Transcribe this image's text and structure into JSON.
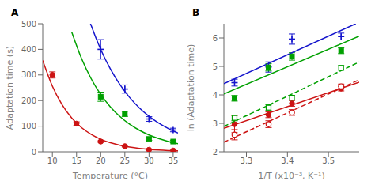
{
  "chart_data": [
    {
      "type": "scatter",
      "title": "A",
      "xlabel": "Temperature (°C)",
      "ylabel": "Adaptation time (s)",
      "xlim": [
        8,
        36
      ],
      "ylim": [
        0,
        500
      ],
      "xticks": [
        10,
        15,
        20,
        25,
        30,
        35
      ],
      "yticks": [
        0,
        100,
        200,
        300,
        400,
        500
      ],
      "grid": false,
      "series": [
        {
          "type": "line",
          "color": "#cc1414",
          "line_style": "solid",
          "x": [
            8,
            10,
            12,
            14,
            16,
            18,
            20,
            22,
            24,
            26,
            28,
            30,
            32,
            34,
            36
          ],
          "values": [
            356.43,
            256.07,
            183.98,
            132.18,
            94.96,
            68.23,
            49.02,
            35.22,
            25.3,
            18.18,
            13.06,
            9.38,
            6.74,
            4.84,
            3.48
          ]
        },
        {
          "type": "scatter",
          "color": "#cc1414",
          "marker": "circle",
          "x": [
            10,
            15,
            20,
            25,
            30,
            35
          ],
          "values": [
            300,
            110,
            40,
            22,
            8,
            5
          ],
          "yerr": [
            12,
            7,
            3,
            3,
            1,
            1
          ]
        },
        {
          "type": "line",
          "color": "#00a000",
          "line_style": "solid",
          "x": [
            14,
            16,
            18,
            20,
            22,
            24,
            26,
            28,
            30,
            32,
            34,
            36
          ],
          "values": [
            467.51,
            365.84,
            286.28,
            224.02,
            175.31,
            137.18,
            107.35,
            84.01,
            65.74,
            51.44,
            40.25,
            31.5
          ]
        },
        {
          "type": "scatter",
          "color": "#00a000",
          "marker": "square",
          "x": [
            20,
            25,
            30,
            35
          ],
          "values": [
            215,
            148,
            50,
            40
          ],
          "yerr": [
            18,
            10,
            5,
            4
          ]
        },
        {
          "type": "line",
          "color": "#1414cc",
          "line_style": "solid",
          "x": [
            17.891,
            18,
            20,
            22,
            24,
            26,
            28,
            30,
            32,
            34,
            36
          ],
          "values": [
            500,
            494.24,
            399.89,
            323.56,
            261.79,
            211.82,
            171.38,
            138.67,
            112.2,
            90.78,
            73.45
          ]
        },
        {
          "type": "scatter",
          "color": "#1414cc",
          "marker": "plus",
          "x": [
            20,
            25,
            30,
            35
          ],
          "values": [
            400,
            245,
            128,
            85
          ],
          "yerr": [
            38,
            16,
            9,
            7
          ]
        }
      ]
    },
    {
      "type": "scatter",
      "title": "B",
      "xlabel": "1/T (x10⁻³, K⁻¹)",
      "ylabel": "ln (Adaptation time)",
      "xlim": [
        3.245,
        3.575
      ],
      "ylim": [
        2.0,
        6.5
      ],
      "xticks": [
        3.3,
        3.4,
        3.5
      ],
      "yticks": [
        2,
        3,
        4,
        5,
        6
      ],
      "grid": false,
      "series": [
        {
          "type": "line",
          "color": "#1414cc",
          "line_style": "solid",
          "x": [
            3.245,
            3.5666
          ],
          "values": [
            4.394,
            6.5
          ]
        },
        {
          "type": "scatter",
          "color": "#1414cc",
          "marker": "plus",
          "x": [
            3.271,
            3.354,
            3.411,
            3.531
          ],
          "values": [
            4.43,
            4.98,
            5.96,
            6.05
          ],
          "yerr": [
            0.12,
            0.18,
            0.18,
            0.12
          ]
        },
        {
          "type": "line",
          "color": "#00a000",
          "line_style": "solid",
          "x": [
            3.245,
            3.575
          ],
          "values": [
            4.036,
            6.063
          ]
        },
        {
          "type": "scatter",
          "color": "#00a000",
          "marker": "square",
          "x": [
            3.271,
            3.354,
            3.411,
            3.531
          ],
          "values": [
            3.88,
            4.97,
            5.35,
            5.55
          ],
          "yerr": [
            0.1,
            0.13,
            0.13,
            0.1
          ]
        },
        {
          "type": "line",
          "color": "#cc1414",
          "line_style": "solid",
          "x": [
            3.245,
            3.575
          ],
          "values": [
            2.827,
            4.447
          ]
        },
        {
          "type": "scatter",
          "color": "#cc1414",
          "marker": "circle",
          "x": [
            3.271,
            3.354,
            3.411,
            3.531
          ],
          "values": [
            2.97,
            3.3,
            3.7,
            4.22
          ],
          "yerr": [
            0.3,
            0.1,
            0.1,
            0.08
          ]
        },
        {
          "type": "line",
          "color": "#00a000",
          "line_style": "dashed",
          "x": [
            3.245,
            3.575
          ],
          "values": [
            2.892,
            5.154
          ]
        },
        {
          "type": "scatter",
          "color": "#00a000",
          "marker": "open_square",
          "x": [
            3.271,
            3.354,
            3.411,
            3.531
          ],
          "values": [
            3.19,
            3.55,
            3.9,
            4.95
          ],
          "yerr": [
            0.1,
            0.1,
            0.08,
            0.08
          ]
        },
        {
          "type": "line",
          "color": "#cc1414",
          "line_style": "dashed",
          "x": [
            3.245,
            3.575
          ],
          "values": [
            2.337,
            4.531
          ]
        },
        {
          "type": "scatter",
          "color": "#cc1414",
          "marker": "open_circle",
          "x": [
            3.271,
            3.354,
            3.411,
            3.531
          ],
          "values": [
            2.6,
            2.97,
            3.38,
            4.3
          ],
          "yerr": [
            0.18,
            0.12,
            0.1,
            0.08
          ]
        }
      ]
    }
  ]
}
